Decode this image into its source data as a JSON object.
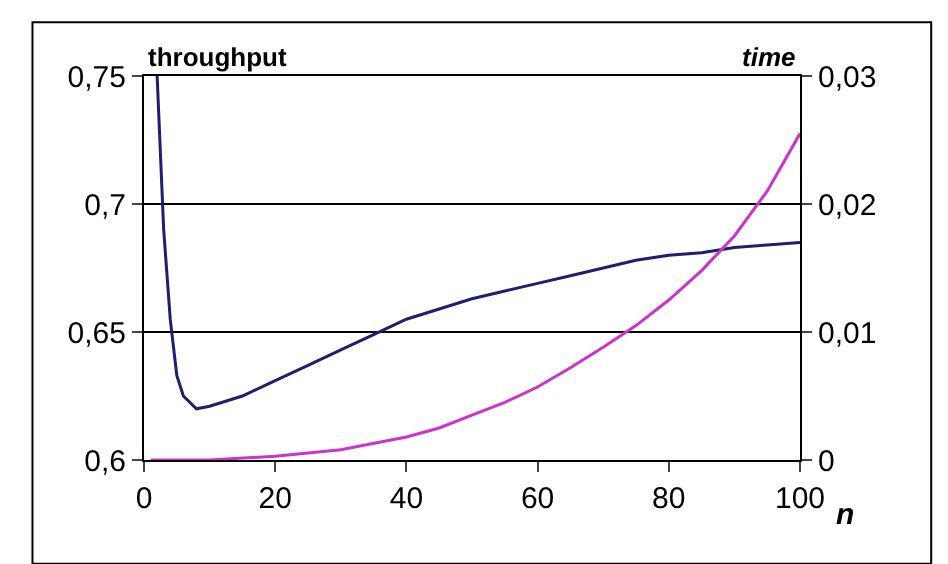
{
  "chart_data": {
    "type": "line",
    "ylabel": "throughput",
    "y2label": "time",
    "xlabel": "n",
    "series": [
      {
        "color": "#1f1f6e",
        "x": [
          2,
          3,
          4,
          5,
          6,
          8,
          10,
          15,
          20,
          25,
          30,
          35,
          40,
          45,
          50,
          55,
          60,
          65,
          70,
          75,
          80,
          85,
          90,
          95,
          100
        ],
        "values": [
          0.75,
          0.69,
          0.655,
          0.633,
          0.625,
          0.62,
          0.621,
          0.625,
          0.631,
          0.637,
          0.643,
          0.649,
          0.655,
          0.659,
          0.663,
          0.666,
          0.669,
          0.672,
          0.675,
          0.678,
          0.68,
          0.681,
          0.683,
          0.684,
          0.685
        ]
      },
      {
        "color": "#cc33cc",
        "axis": "y2",
        "x": [
          1,
          10,
          20,
          30,
          40,
          45,
          50,
          55,
          60,
          65,
          70,
          75,
          80,
          85,
          90,
          95,
          100
        ],
        "values": [
          0,
          0,
          0.0003,
          0.0008,
          0.0018,
          0.0025,
          0.0035,
          0.0045,
          0.0057,
          0.0072,
          0.0088,
          0.0105,
          0.0125,
          0.0148,
          0.0175,
          0.021,
          0.0255
        ]
      }
    ],
    "xlim": [
      0,
      100
    ],
    "xticks": [
      0,
      20,
      40,
      60,
      80,
      100
    ],
    "ylim": [
      0.6,
      0.75
    ],
    "yticks": [
      {
        "value": 0.6,
        "label": "0,6"
      },
      {
        "value": 0.65,
        "label": "0,65"
      },
      {
        "value": 0.7,
        "label": "0,7"
      },
      {
        "value": 0.75,
        "label": "0,75"
      }
    ],
    "y2lim": [
      0,
      0.03
    ],
    "y2ticks": [
      0,
      {
        "value": 0.01,
        "label": "0,01"
      },
      {
        "value": 0.02,
        "label": "0,02"
      },
      {
        "value": 0.03,
        "label": "0,03"
      }
    ],
    "grid": "y",
    "marker": "none",
    "line_style": "solid"
  }
}
